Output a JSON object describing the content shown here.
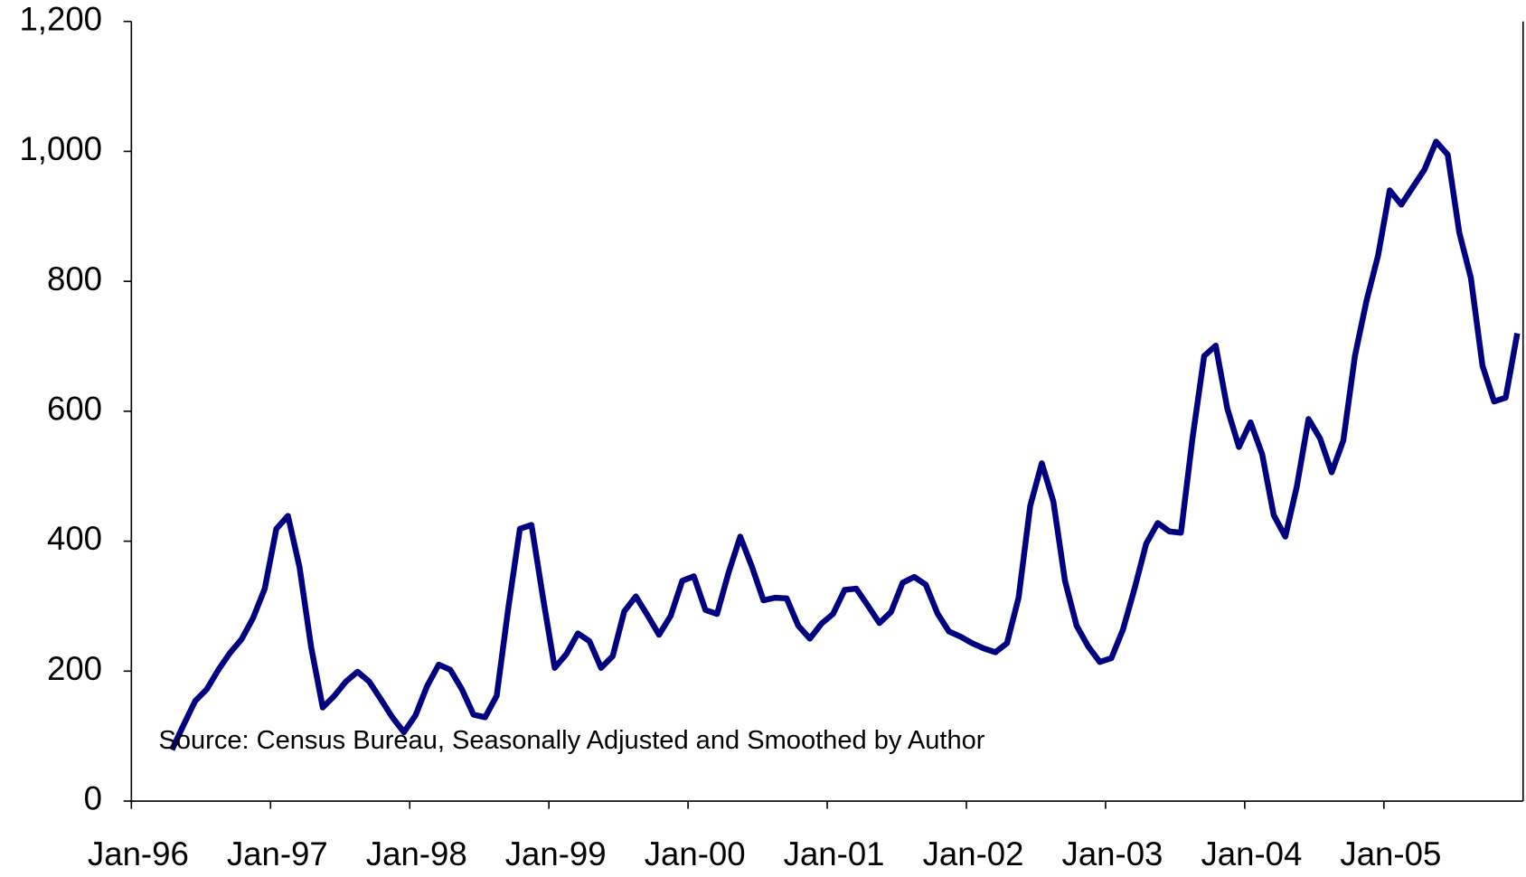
{
  "chart_data": {
    "type": "line",
    "annotation": "Source: Census Bureau, Seasonally Adjusted and Smoothed by Author",
    "x": [
      "1996-04",
      "1996-05",
      "1996-06",
      "1996-07",
      "1996-08",
      "1996-09",
      "1996-10",
      "1996-11",
      "1996-12",
      "1997-01",
      "1997-02",
      "1997-03",
      "1997-04",
      "1997-05",
      "1997-06",
      "1997-07",
      "1997-08",
      "1997-09",
      "1997-10",
      "1997-11",
      "1997-12",
      "1998-01",
      "1998-02",
      "1998-03",
      "1998-04",
      "1998-05",
      "1998-06",
      "1998-07",
      "1998-08",
      "1998-09",
      "1998-10",
      "1998-11",
      "1998-12",
      "1999-01",
      "1999-02",
      "1999-03",
      "1999-04",
      "1999-05",
      "1999-06",
      "1999-07",
      "1999-08",
      "1999-09",
      "1999-10",
      "1999-11",
      "1999-12",
      "2000-01",
      "2000-02",
      "2000-03",
      "2000-04",
      "2000-05",
      "2000-06",
      "2000-07",
      "2000-08",
      "2000-09",
      "2000-10",
      "2000-11",
      "2000-12",
      "2001-01",
      "2001-02",
      "2001-03",
      "2001-04",
      "2001-05",
      "2001-06",
      "2001-07",
      "2001-08",
      "2001-09",
      "2001-10",
      "2001-11",
      "2001-12",
      "2002-01",
      "2002-02",
      "2002-03",
      "2002-04",
      "2002-05",
      "2002-06",
      "2002-07",
      "2002-08",
      "2002-09",
      "2002-10",
      "2002-11",
      "2002-12",
      "2003-01",
      "2003-02",
      "2003-03",
      "2003-04",
      "2003-05",
      "2003-06",
      "2003-07",
      "2003-08",
      "2003-09",
      "2003-10",
      "2003-11",
      "2003-12",
      "2004-01",
      "2004-02",
      "2004-03",
      "2004-04",
      "2004-05",
      "2004-06",
      "2004-07",
      "2004-08",
      "2004-09",
      "2004-10",
      "2004-11",
      "2004-12",
      "2005-01",
      "2005-02",
      "2005-03",
      "2005-04",
      "2005-05",
      "2005-06",
      "2005-07",
      "2005-08",
      "2005-09",
      "2005-10",
      "2005-11",
      "2005-12"
    ],
    "series": [
      {
        "color": "#000080",
        "values": [
          79,
          117,
          154,
          172,
          202,
          228,
          249,
          282,
          327,
          419,
          439,
          360,
          237,
          144,
          162,
          184,
          199,
          184,
          157,
          129,
          106,
          132,
          177,
          210,
          202,
          172,
          133,
          129,
          162,
          297,
          419,
          425,
          312,
          205,
          226,
          258,
          246,
          205,
          223,
          292,
          315,
          286,
          256,
          285,
          339,
          346,
          294,
          288,
          352,
          407,
          361,
          309,
          313,
          312,
          270,
          250,
          273,
          288,
          325,
          327,
          301,
          274,
          291,
          336,
          345,
          333,
          289,
          261,
          253,
          243,
          235,
          229,
          243,
          313,
          454,
          520,
          461,
          339,
          270,
          238,
          214,
          220,
          264,
          327,
          396,
          428,
          415,
          413,
          559,
          685,
          701,
          604,
          545,
          583,
          534,
          440,
          407,
          485,
          588,
          558,
          506,
          555,
          685,
          770,
          840,
          940,
          918,
          945,
          972,
          1015,
          995,
          875,
          805,
          670,
          615,
          621,
          720
        ]
      }
    ],
    "xlim": [
      "1996-01",
      "2006-01"
    ],
    "xticks": [
      {
        "value": "1996-01",
        "label": "Jan-96"
      },
      {
        "value": "1997-01",
        "label": "Jan-97"
      },
      {
        "value": "1998-01",
        "label": "Jan-98"
      },
      {
        "value": "1999-01",
        "label": "Jan-99"
      },
      {
        "value": "2000-01",
        "label": "Jan-00"
      },
      {
        "value": "2001-01",
        "label": "Jan-01"
      },
      {
        "value": "2002-01",
        "label": "Jan-02"
      },
      {
        "value": "2003-01",
        "label": "Jan-03"
      },
      {
        "value": "2004-01",
        "label": "Jan-04"
      },
      {
        "value": "2005-01",
        "label": "Jan-05"
      }
    ],
    "ylim": [
      0,
      1200
    ],
    "yticks": [
      0,
      200,
      400,
      600,
      800,
      {
        "value": 1000,
        "label": "1,000"
      },
      {
        "value": 1200,
        "label": "1,200"
      }
    ]
  }
}
